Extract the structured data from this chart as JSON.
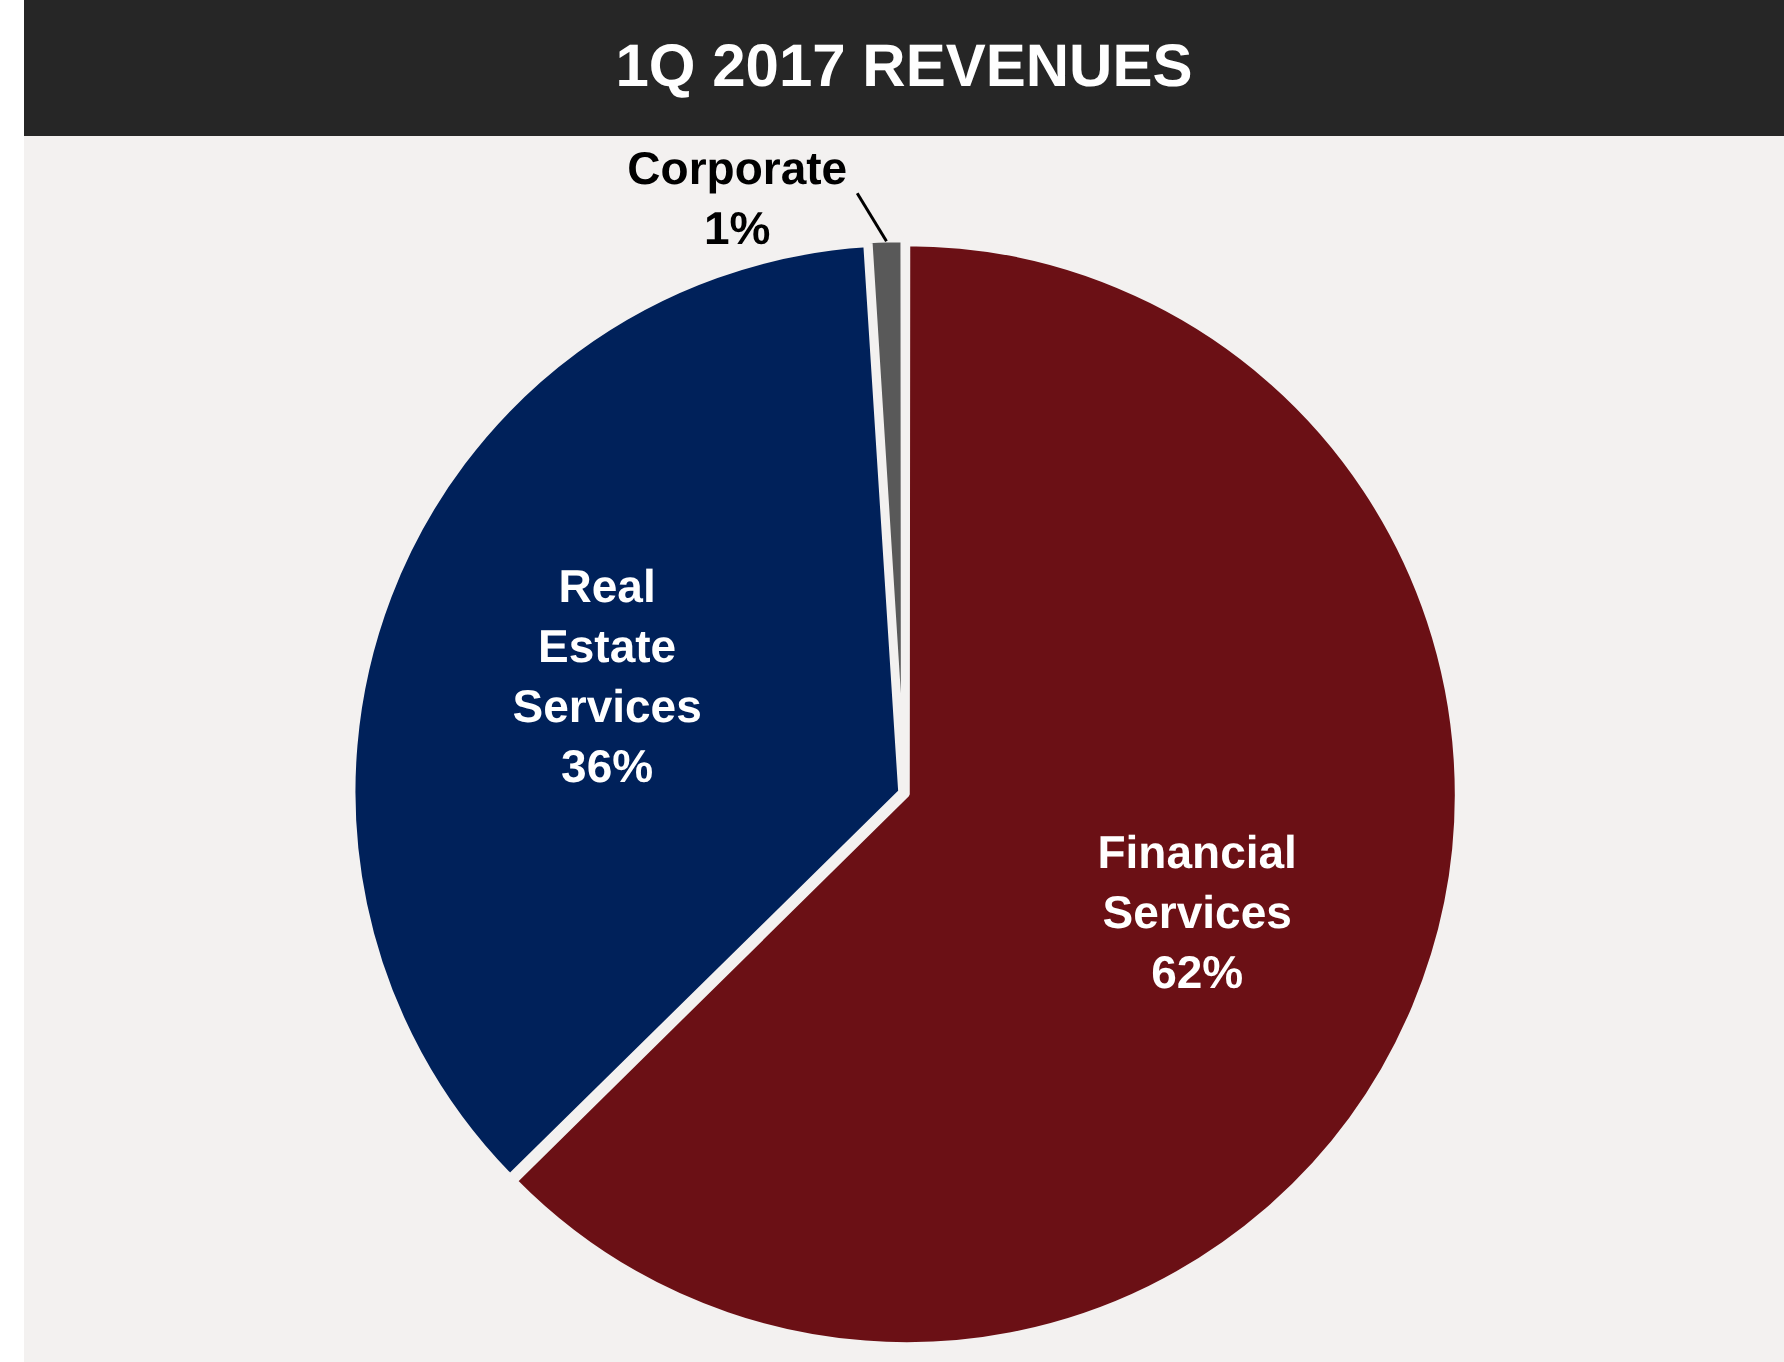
{
  "chart_data": {
    "type": "pie",
    "title": "1Q 2017 REVENUES",
    "categories": [
      "Financial Services",
      "Real Estate Services",
      "Corporate"
    ],
    "values": [
      62,
      36,
      1
    ],
    "value_labels": [
      "62%",
      "36%",
      "1%"
    ],
    "colors": [
      "#6b1015",
      "#00215a",
      "#595959"
    ]
  }
}
